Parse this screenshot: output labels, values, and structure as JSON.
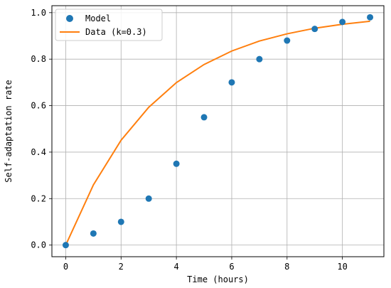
{
  "chart_data": {
    "type": "scatter",
    "title": "",
    "xlabel": "Time (hours)",
    "ylabel": "Self-adaptation rate",
    "xlim": [
      -0.5,
      11.5
    ],
    "ylim": [
      -0.05,
      1.03
    ],
    "xticks": [
      0,
      2,
      4,
      6,
      8,
      10
    ],
    "yticks": [
      0.0,
      0.2,
      0.4,
      0.6,
      0.8,
      1.0
    ],
    "xtick_labels": [
      "0",
      "2",
      "4",
      "6",
      "8",
      "10"
    ],
    "ytick_labels": [
      "0.0",
      "0.2",
      "0.4",
      "0.6",
      "0.8",
      "1.0"
    ],
    "grid": true,
    "legend_position": "upper-left",
    "series": [
      {
        "name": "Model",
        "kind": "scatter",
        "color": "#1f77b4",
        "x": [
          0,
          1,
          2,
          3,
          4,
          5,
          6,
          7,
          8,
          9,
          10,
          11
        ],
        "y": [
          0.0,
          0.05,
          0.1,
          0.2,
          0.35,
          0.55,
          0.7,
          0.8,
          0.88,
          0.93,
          0.96,
          0.98
        ]
      },
      {
        "name": "Data (k=0.3)",
        "kind": "line",
        "color": "#ff7f0e",
        "x": [
          0,
          1,
          2,
          3,
          4,
          5,
          6,
          7,
          8,
          9,
          10,
          11
        ],
        "y": [
          0.0,
          0.259,
          0.451,
          0.593,
          0.699,
          0.777,
          0.835,
          0.878,
          0.909,
          0.933,
          0.95,
          0.963
        ]
      }
    ]
  }
}
